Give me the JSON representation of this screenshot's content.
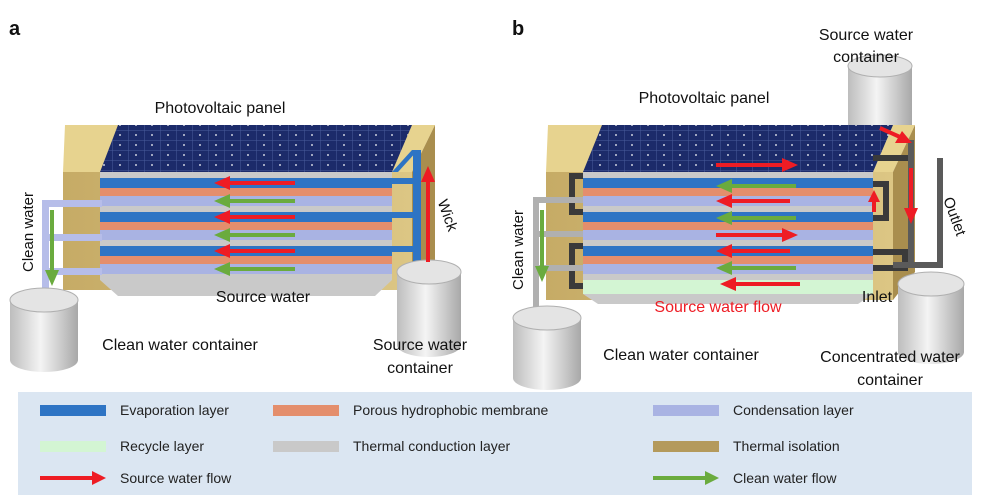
{
  "panels": {
    "a": {
      "letter": "a",
      "photovoltaic": "Photovoltaic panel",
      "clean_water": "Clean water",
      "wick": "Wick",
      "source_water": "Source water",
      "clean_container": "Clean water container",
      "source_container_1": "Source water",
      "source_container_2": "container"
    },
    "b": {
      "letter": "b",
      "photovoltaic": "Photovoltaic panel",
      "source_container_1": "Source water",
      "source_container_2": "container",
      "clean_water": "Clean water",
      "outlet": "Outlet",
      "inlet": "Inlet",
      "source_flow": "Source water flow",
      "clean_container": "Clean water container",
      "conc_container_1": "Concentrated water",
      "conc_container_2": "container"
    }
  },
  "legend": {
    "evaporation": "Evaporation layer",
    "membrane": "Porous hydrophobic membrane",
    "condensation": "Condensation layer",
    "recycle": "Recycle layer",
    "conduction": "Thermal conduction layer",
    "isolation": "Thermal isolation",
    "source_flow": "Source water flow",
    "clean_flow": "Clean water flow"
  },
  "colors": {
    "evaporation": "#2e74c4",
    "membrane": "#e48e6c",
    "condensation": "#a9b3e3",
    "recycle": "#d3f5d3",
    "conduction": "#c9c9c9",
    "isolation": "#b49a5c",
    "source_arrow": "#ee1c24",
    "clean_arrow": "#6aab3e",
    "pv": "#1c2b6a",
    "legend_bg": "#dbe6f2"
  }
}
